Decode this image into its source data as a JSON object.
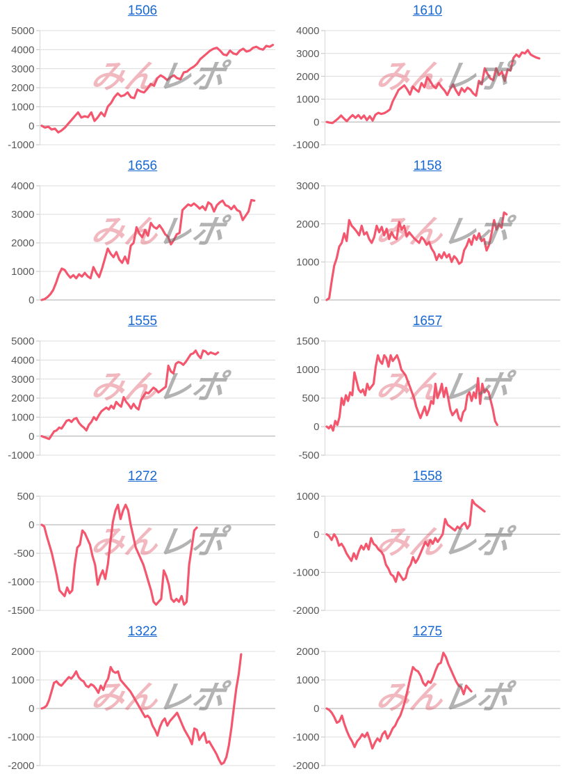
{
  "watermark": {
    "pink": "みん",
    "gray": "レポ"
  },
  "colors": {
    "line": "#F4566E",
    "title_link": "#1667D2",
    "axis_text": "#595959",
    "gridline": "#DCDCDC",
    "zero_line": "#ABABAB",
    "axis_line": "#D6D6D6",
    "tick_mark": "#BFBFBF",
    "watermark_pink": "rgba(223,85,102,0.42)",
    "watermark_gray": "rgba(110,110,110,0.52)"
  },
  "chart_data": [
    {
      "type": "line",
      "title": "1506",
      "ylim": [
        -1000,
        5000
      ],
      "yticks": [
        5000,
        4000,
        3000,
        2000,
        1000,
        0,
        -1000
      ],
      "x_frac": 0.99,
      "values": [
        0,
        -100,
        -50,
        -200,
        -150,
        -350,
        -250,
        -100,
        100,
        300,
        500,
        700,
        430,
        500,
        450,
        700,
        250,
        450,
        700,
        500,
        1000,
        1200,
        1500,
        1700,
        1550,
        1600,
        1750,
        1500,
        1450,
        1900,
        1800,
        1750,
        1950,
        2200,
        2100,
        2500,
        2650,
        2550,
        2400,
        2550,
        2650,
        2500,
        2450,
        2800,
        2850,
        3000,
        3100,
        3250,
        3500,
        3650,
        3800,
        3950,
        4050,
        4100,
        3950,
        3750,
        3700,
        3950,
        3800,
        3750,
        3950,
        4050,
        3900,
        3950,
        4100,
        4150,
        4050,
        4000,
        4200,
        4150,
        4250
      ]
    },
    {
      "type": "line",
      "title": "1610",
      "ylim": [
        -1000,
        4000
      ],
      "yticks": [
        4000,
        3000,
        2000,
        1000,
        0,
        -1000
      ],
      "x_frac": 0.91,
      "values": [
        0,
        -30,
        -50,
        50,
        150,
        280,
        150,
        30,
        180,
        300,
        180,
        300,
        150,
        280,
        80,
        250,
        60,
        320,
        400,
        350,
        380,
        450,
        550,
        900,
        1150,
        1400,
        1500,
        1600,
        1430,
        1200,
        1550,
        1420,
        1320,
        1700,
        1520,
        1950,
        1800,
        1580,
        1480,
        1700,
        1520,
        1380,
        1180,
        1450,
        1650,
        1380,
        1180,
        1480,
        1320,
        1500,
        1420,
        1250,
        1150,
        1800,
        1650,
        2350,
        2100,
        1900,
        1830,
        2350,
        2050,
        2200,
        1800,
        2300,
        2250,
        2800,
        2950,
        2850,
        3050,
        3000,
        3150,
        2950,
        2880,
        2820,
        2780
      ]
    },
    {
      "type": "line",
      "title": "1656",
      "ylim": [
        0,
        4000
      ],
      "yticks": [
        4000,
        3000,
        2000,
        1000,
        0
      ],
      "x_frac": 0.91,
      "values": [
        0,
        30,
        100,
        200,
        350,
        600,
        900,
        1100,
        1050,
        900,
        780,
        870,
        760,
        900,
        820,
        950,
        830,
        760,
        1150,
        950,
        800,
        1100,
        1450,
        1800,
        1620,
        1500,
        1680,
        1420,
        1300,
        1520,
        1280,
        1900,
        2000,
        2550,
        2320,
        2200,
        2450,
        2250,
        2700,
        2560,
        2500,
        2620,
        2480,
        2300,
        2220,
        1950,
        2100,
        2300,
        2350,
        3150,
        3250,
        3350,
        3300,
        3380,
        3300,
        3200,
        3280,
        3150,
        3420,
        3350,
        3100,
        3320,
        3420,
        3480,
        3320,
        3280,
        3180,
        3300,
        3150,
        3100,
        2800,
        2950,
        3100,
        3500,
        3480
      ]
    },
    {
      "type": "line",
      "title": "1158",
      "ylim": [
        0,
        3000
      ],
      "yticks": [
        3000,
        2000,
        1000,
        0
      ],
      "x_frac": 0.77,
      "values": [
        0,
        50,
        500,
        900,
        1100,
        1400,
        1500,
        1750,
        1550,
        2100,
        1950,
        1880,
        1800,
        1700,
        1950,
        1720,
        1780,
        1600,
        1500,
        1650,
        1950,
        1780,
        1920,
        1700,
        1870,
        1600,
        1780,
        1650,
        1600,
        2050,
        1850,
        1950,
        1680,
        1780,
        1700,
        1620,
        1560,
        1500,
        1650,
        1580,
        1450,
        1520,
        1350,
        1250,
        1050,
        1200,
        1100,
        1250,
        1120,
        1200,
        1000,
        1150,
        1080,
        950,
        1000,
        1300,
        1420,
        1600,
        1450,
        1700,
        1580,
        1750,
        1550,
        1600,
        1300,
        1450,
        1750,
        2100,
        1850,
        2000,
        1900,
        2300,
        2250
      ]
    },
    {
      "type": "line",
      "title": "1555",
      "ylim": [
        -1000,
        5000
      ],
      "yticks": [
        5000,
        4000,
        3000,
        2000,
        1000,
        0,
        -1000
      ],
      "x_frac": 0.755,
      "values": [
        0,
        -50,
        -100,
        -150,
        50,
        250,
        300,
        450,
        400,
        600,
        800,
        850,
        750,
        900,
        950,
        700,
        550,
        450,
        300,
        600,
        750,
        1000,
        850,
        1100,
        1300,
        1400,
        1500,
        1400,
        1600,
        1450,
        1800,
        1650,
        1550,
        2050,
        1800,
        1650,
        1450,
        1700,
        1500,
        1400,
        1900,
        2100,
        2300,
        2250,
        2400,
        2550,
        2450,
        2300,
        2400,
        2500,
        2600,
        3700,
        3400,
        3300,
        3800,
        3900,
        3850,
        3750,
        3900,
        4100,
        4300,
        4350,
        4500,
        4250,
        4100,
        4500,
        4450,
        4300,
        4400,
        4350,
        4300,
        4400
      ]
    },
    {
      "type": "line",
      "title": "1657",
      "ylim": [
        -500,
        1500
      ],
      "yticks": [
        1500,
        1000,
        500,
        0,
        -500
      ],
      "x_frac": 0.73,
      "values": [
        0,
        -30,
        20,
        -70,
        100,
        30,
        170,
        500,
        380,
        550,
        450,
        600,
        550,
        950,
        800,
        650,
        600,
        650,
        550,
        750,
        650,
        700,
        750,
        1050,
        1250,
        1150,
        1100,
        1250,
        1200,
        1050,
        1250,
        1150,
        1200,
        1250,
        1150,
        1000,
        950,
        900,
        800,
        700,
        600,
        500,
        350,
        250,
        150,
        250,
        350,
        200,
        300,
        450,
        400,
        750,
        500,
        600,
        750,
        520,
        680,
        500,
        300,
        200,
        250,
        300,
        150,
        100,
        250,
        300,
        550,
        600,
        450,
        600,
        500,
        850,
        400,
        750,
        600,
        650,
        600,
        450,
        300,
        100,
        30
      ]
    },
    {
      "type": "line",
      "title": "1272",
      "ylim": [
        -1500,
        500
      ],
      "yticks": [
        500,
        0,
        -500,
        -1000,
        -1500
      ],
      "x_frac": 0.664,
      "values": [
        0,
        -30,
        -200,
        -350,
        -500,
        -700,
        -900,
        -1150,
        -1200,
        -1250,
        -1100,
        -1200,
        -1150,
        -700,
        -400,
        -350,
        -100,
        -150,
        -250,
        -350,
        -550,
        -700,
        -1050,
        -900,
        -800,
        -950,
        -700,
        -300,
        50,
        250,
        350,
        100,
        250,
        350,
        250,
        0,
        -200,
        -400,
        -500,
        -600,
        -700,
        -850,
        -1000,
        -1150,
        -1350,
        -1400,
        -1350,
        -1300,
        -800,
        -900,
        -1050,
        -1300,
        -1350,
        -1300,
        -1350,
        -1250,
        -1400,
        -1350,
        -700,
        -400,
        -100,
        -50
      ]
    },
    {
      "type": "line",
      "title": "1558",
      "ylim": [
        -2000,
        1000
      ],
      "yticks": [
        1000,
        0,
        -1000,
        -2000
      ],
      "x_frac": 0.676,
      "values": [
        0,
        -50,
        -150,
        0,
        -100,
        -300,
        -250,
        -350,
        -500,
        -600,
        -700,
        -500,
        -650,
        -450,
        -300,
        -400,
        -250,
        -400,
        -100,
        -250,
        -300,
        -400,
        -450,
        -550,
        -800,
        -900,
        -1050,
        -1100,
        -1250,
        -1000,
        -1100,
        -1200,
        -1150,
        -900,
        -800,
        -600,
        -750,
        -650,
        -500,
        -350,
        -200,
        -300,
        -150,
        -250,
        -100,
        -200,
        -100,
        0,
        400,
        250,
        200,
        150,
        100,
        200,
        150,
        250,
        300,
        150,
        250,
        900,
        800,
        750,
        700,
        650,
        600
      ]
    },
    {
      "type": "line",
      "title": "1322",
      "ylim": [
        -2000,
        2000
      ],
      "yticks": [
        2000,
        1000,
        0,
        -1000,
        -2000
      ],
      "x_frac": 0.854,
      "values": [
        0,
        30,
        100,
        300,
        600,
        900,
        950,
        850,
        800,
        900,
        1000,
        1100,
        1050,
        1150,
        1300,
        1100,
        1000,
        950,
        800,
        750,
        850,
        800,
        700,
        550,
        800,
        650,
        900,
        1050,
        1450,
        1300,
        1250,
        1300,
        1000,
        900,
        800,
        700,
        600,
        450,
        300,
        150,
        0,
        -150,
        -300,
        -250,
        -350,
        -600,
        -750,
        -950,
        -650,
        -450,
        -350,
        -600,
        -450,
        -350,
        -250,
        -150,
        -350,
        -550,
        -750,
        -900,
        -1050,
        -1250,
        -700,
        -750,
        -1100,
        -950,
        -850,
        -1200,
        -1150,
        -1300,
        -1450,
        -1600,
        -1800,
        -1950,
        -1900,
        -1700,
        -1300,
        -700,
        0,
        700,
        1200,
        1900
      ]
    },
    {
      "type": "line",
      "title": "1275",
      "ylim": [
        -2000,
        2000
      ],
      "yticks": [
        2000,
        1000,
        0,
        -1000,
        -2000
      ],
      "x_frac": 0.619,
      "values": [
        0,
        -50,
        -150,
        -300,
        -500,
        -450,
        -250,
        -550,
        -800,
        -1000,
        -1150,
        -1350,
        -1150,
        -1050,
        -900,
        -1000,
        -850,
        -1100,
        -1400,
        -1200,
        -1050,
        -1150,
        -900,
        -800,
        -1050,
        -900,
        -700,
        -600,
        -400,
        -250,
        0,
        300,
        700,
        1100,
        1450,
        1350,
        1300,
        1150,
        900,
        800,
        950,
        900,
        1100,
        1350,
        1550,
        1600,
        1950,
        1800,
        1550,
        1350,
        1150,
        950,
        800,
        750,
        500,
        800,
        700,
        600
      ]
    }
  ]
}
